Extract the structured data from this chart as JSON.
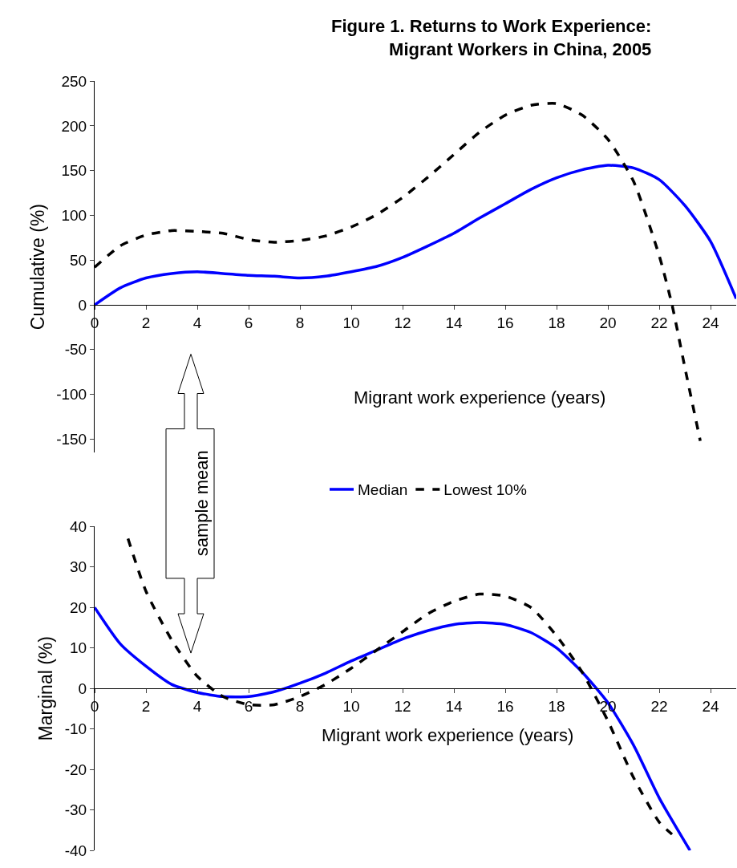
{
  "chart_data": [
    {
      "type": "line",
      "title": "Figure 1. Returns to Work Experience:\nMigrant Workers in China, 2005",
      "ylabel": "Cumulative (%)",
      "xlabel": "Migrant work experience (years)",
      "annotations": [
        "sample mean"
      ],
      "xlim": [
        0,
        25
      ],
      "xticks": [
        0,
        2,
        4,
        6,
        8,
        10,
        12,
        14,
        16,
        18,
        20,
        22,
        24
      ],
      "ylim": [
        -165,
        250
      ],
      "yticks": [
        -150,
        -100,
        -50,
        0,
        50,
        100,
        150,
        200,
        250
      ],
      "legend": "bottom",
      "marker": "none",
      "series": [
        {
          "name": "Median",
          "color": "#0000ff",
          "line_style": "solid",
          "x": [
            0,
            1,
            2,
            3,
            4,
            5,
            6,
            7,
            8,
            9,
            10,
            11,
            12,
            13,
            14,
            15,
            16,
            17,
            18,
            19,
            20,
            21,
            22,
            23,
            24,
            25
          ],
          "values": [
            0,
            19,
            30,
            35,
            37,
            35,
            33,
            32,
            30,
            32,
            37,
            43,
            53,
            66,
            80,
            97,
            113,
            129,
            142,
            151,
            156,
            153,
            140,
            111,
            71,
            7
          ]
        },
        {
          "name": "Lowest 10%",
          "color": "#000000",
          "line_style": "dashed",
          "x": [
            0,
            1,
            2,
            3,
            4,
            5,
            6,
            7,
            8,
            9,
            10,
            11,
            12,
            13,
            14,
            15,
            16,
            17,
            18,
            19,
            20,
            21,
            22,
            22.5,
            23,
            23.6
          ],
          "values": [
            42,
            66,
            78,
            83,
            82,
            80,
            73,
            70,
            72,
            77,
            87,
            101,
            120,
            143,
            168,
            193,
            212,
            223,
            225,
            212,
            185,
            138,
            55,
            0,
            -70,
            -152
          ]
        }
      ]
    },
    {
      "type": "line",
      "ylabel": "Marginal (%)",
      "xlabel": "Migrant work experience (years)",
      "xlim": [
        0,
        25
      ],
      "xticks": [
        0,
        2,
        4,
        6,
        8,
        10,
        12,
        14,
        16,
        18,
        20,
        22,
        24
      ],
      "ylim": [
        -40,
        40
      ],
      "yticks": [
        -40,
        -30,
        -20,
        -10,
        0,
        10,
        20,
        30,
        40
      ],
      "marker": "none",
      "series": [
        {
          "color": "#0000ff",
          "line_style": "solid",
          "x": [
            0,
            1,
            2,
            3,
            4,
            5,
            6,
            7,
            8,
            9,
            10,
            11,
            12,
            13,
            14,
            15,
            16,
            17,
            18,
            19,
            20,
            21,
            22,
            23.2
          ],
          "values": [
            20,
            11,
            5.5,
            1,
            -1,
            -2,
            -2,
            -0.8,
            1.3,
            3.8,
            6.8,
            9.5,
            12.2,
            14.3,
            15.8,
            16.3,
            15.8,
            13.8,
            10,
            4,
            -3.5,
            -14,
            -27,
            -40
          ]
        },
        {
          "color": "#000000",
          "line_style": "dashed",
          "x": [
            1.3,
            2,
            3,
            4,
            5,
            6,
            7,
            8,
            9,
            10,
            11,
            12,
            13,
            14,
            15,
            16,
            17,
            18,
            19,
            20,
            21,
            22,
            22.5
          ],
          "values": [
            37,
            24,
            12,
            3,
            -2,
            -4,
            -4,
            -2,
            1,
            5,
            9.5,
            14,
            18.5,
            21.5,
            23.3,
            22.8,
            20,
            13,
            4,
            -8,
            -22,
            -33,
            -36
          ]
        }
      ]
    }
  ]
}
